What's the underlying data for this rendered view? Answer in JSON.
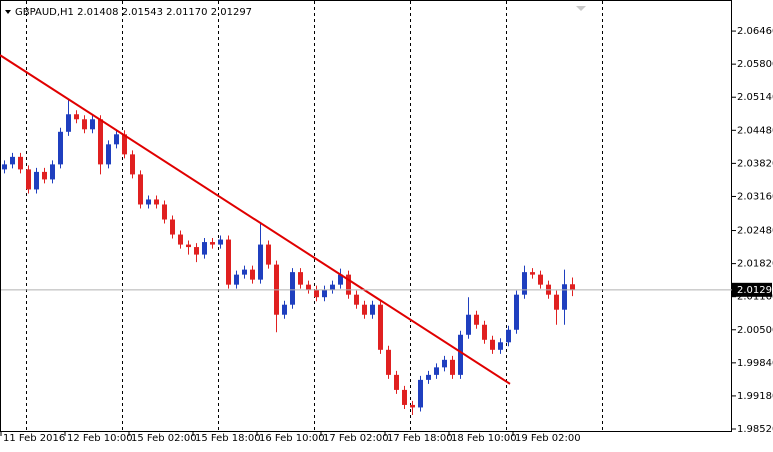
{
  "chart_data": {
    "type": "candlestick",
    "title": "GBPAUD,H1  2.01408 2.01543 2.01170 2.01297",
    "categories": [
      "11 Feb 2016",
      null,
      null,
      null,
      null,
      null,
      null,
      null,
      "12 Feb 10:00",
      null,
      null,
      null,
      null,
      null,
      null,
      null,
      "15 Feb 02:00",
      null,
      null,
      null,
      null,
      null,
      null,
      null,
      "15 Feb 18:00",
      null,
      null,
      null,
      null,
      null,
      null,
      null,
      "16 Feb 10:00",
      null,
      null,
      null,
      null,
      null,
      null,
      null,
      "17 Feb 02:00",
      null,
      null,
      null,
      null,
      null,
      null,
      null,
      "17 Feb 18:00",
      null,
      null,
      null,
      null,
      null,
      null,
      null,
      "18 Feb 10:00",
      null,
      null,
      null,
      null,
      null,
      null,
      null,
      "19 Feb 02:00",
      null,
      null,
      null,
      null,
      null,
      null,
      null
    ],
    "open": [
      2.037,
      2.038,
      2.0395,
      2.037,
      2.033,
      2.0365,
      2.035,
      2.038,
      2.0445,
      2.048,
      2.047,
      2.045,
      2.047,
      2.038,
      2.042,
      2.044,
      2.04,
      2.036,
      2.03,
      2.031,
      2.03,
      2.027,
      2.024,
      2.022,
      2.0215,
      2.02,
      2.0225,
      2.022,
      2.023,
      2.014,
      2.016,
      2.017,
      2.015,
      2.022,
      2.018,
      2.008,
      2.01,
      2.0165,
      2.014,
      2.013,
      2.0115,
      2.013,
      2.014,
      2.016,
      2.012,
      2.01,
      2.008,
      2.01,
      2.001,
      1.996,
      1.993,
      1.99,
      1.9895,
      1.995,
      1.996,
      1.9975,
      1.999,
      1.996,
      2.004,
      2.008,
      2.006,
      2.003,
      2.001,
      2.0025,
      2.005,
      2.012,
      2.0165,
      2.016,
      2.014,
      2.012,
      2.009,
      2.01408
    ],
    "high": [
      2.0388,
      2.0403,
      2.0403,
      2.0378,
      2.0373,
      2.0373,
      2.0388,
      2.0453,
      2.051,
      2.0488,
      2.0478,
      2.0478,
      2.0478,
      2.0428,
      2.0448,
      2.0448,
      2.0408,
      2.0368,
      2.0318,
      2.0318,
      2.0308,
      2.0278,
      2.0248,
      2.0228,
      2.0223,
      2.0233,
      2.0233,
      2.0238,
      2.0238,
      2.0168,
      2.0178,
      2.0178,
      2.0265,
      2.0228,
      2.0188,
      2.0108,
      2.0173,
      2.0173,
      2.0148,
      2.0138,
      2.0138,
      2.0148,
      2.0172,
      2.0168,
      2.0128,
      2.0108,
      2.0108,
      2.0108,
      2.0018,
      1.9968,
      1.9938,
      1.9908,
      1.9958,
      1.9968,
      1.9983,
      1.9998,
      1.9998,
      2.0048,
      2.0115,
      2.0088,
      2.0068,
      2.0038,
      2.0033,
      2.0058,
      2.0128,
      2.0178,
      2.0173,
      2.0168,
      2.0148,
      2.0128,
      2.017,
      2.01543
    ],
    "low": [
      2.0362,
      2.0372,
      2.0362,
      2.0322,
      2.0322,
      2.0342,
      2.0342,
      2.0372,
      2.0437,
      2.0462,
      2.0442,
      2.0442,
      2.036,
      2.0372,
      2.0412,
      2.0392,
      2.0352,
      2.0292,
      2.0292,
      2.0292,
      2.0262,
      2.0232,
      2.0212,
      2.02,
      2.0185,
      2.0192,
      2.0212,
      2.0212,
      2.0132,
      2.0132,
      2.0152,
      2.0142,
      2.0142,
      2.0172,
      2.0045,
      2.0072,
      2.0092,
      2.0132,
      2.0122,
      2.0107,
      2.0107,
      2.0122,
      2.0132,
      2.0112,
      2.0092,
      2.0072,
      2.0072,
      2.0002,
      1.9952,
      1.9922,
      1.9892,
      1.988,
      1.9887,
      1.9942,
      1.9952,
      1.9967,
      1.9952,
      1.9952,
      2.0032,
      2.0052,
      2.0022,
      2.0002,
      2.0002,
      2.0017,
      2.0042,
      2.0112,
      2.0152,
      2.0132,
      2.0112,
      2.006,
      2.006,
      2.0117
    ],
    "close": [
      2.038,
      2.0395,
      2.037,
      2.033,
      2.0365,
      2.035,
      2.038,
      2.0445,
      2.048,
      2.047,
      2.045,
      2.047,
      2.038,
      2.042,
      2.044,
      2.04,
      2.036,
      2.03,
      2.031,
      2.03,
      2.027,
      2.024,
      2.022,
      2.0215,
      2.02,
      2.0225,
      2.022,
      2.023,
      2.014,
      2.016,
      2.017,
      2.015,
      2.022,
      2.018,
      2.008,
      2.01,
      2.0165,
      2.014,
      2.013,
      2.0115,
      2.013,
      2.014,
      2.016,
      2.012,
      2.01,
      2.008,
      2.01,
      2.001,
      1.996,
      1.993,
      1.99,
      1.9895,
      1.995,
      1.996,
      1.9975,
      1.999,
      1.996,
      2.004,
      2.008,
      2.006,
      2.003,
      2.001,
      2.0025,
      2.005,
      2.012,
      2.0165,
      2.016,
      2.014,
      2.012,
      2.009,
      2.01408,
      2.01297
    ],
    "up_color": "#1f3fbf",
    "down_color": "#e02020",
    "ylim": [
      1.9846,
      2.0708
    ],
    "yticks": [
      {
        "value": 1.9852,
        "label": "1.98520"
      },
      {
        "value": 1.9918,
        "label": "1.99180"
      },
      {
        "value": 1.9984,
        "label": "1.99840"
      },
      {
        "value": 2.005,
        "label": "2.00500"
      },
      {
        "value": 2.0116,
        "label": "2.01160"
      },
      {
        "value": 2.0182,
        "label": "2.01820"
      },
      {
        "value": 2.0248,
        "label": "2.02480"
      },
      {
        "value": 2.0316,
        "label": "2.03160"
      },
      {
        "value": 2.0382,
        "label": "2.03820"
      },
      {
        "value": 2.0448,
        "label": "2.04480"
      },
      {
        "value": 2.0514,
        "label": "2.05140"
      },
      {
        "value": 2.058,
        "label": "2.05800"
      },
      {
        "value": 2.0646,
        "label": "2.06460"
      }
    ],
    "last_price": 2.01297,
    "trendline": {
      "x": [
        -0.5,
        63.25
      ],
      "y": [
        2.0598,
        1.9942
      ],
      "color": "#e00000"
    }
  }
}
